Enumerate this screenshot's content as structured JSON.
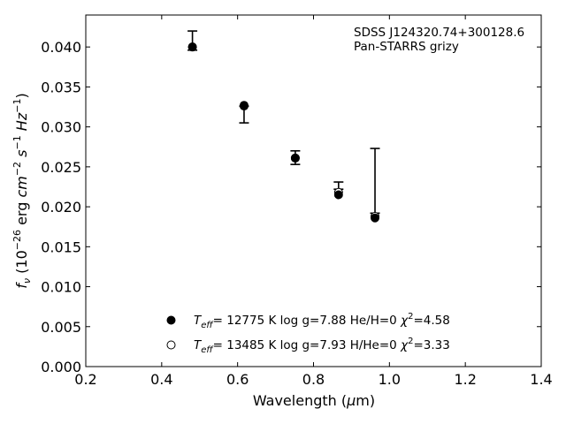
{
  "chart_data": {
    "type": "scatter",
    "title": "",
    "xlabel": "Wavelength (μm)",
    "ylabel": "f_ν (10^-26 erg cm^-2 s^-1 Hz^-1)",
    "xlim": [
      0.2,
      1.4
    ],
    "ylim": [
      0.0,
      0.044
    ],
    "xticks": [
      0.2,
      0.4,
      0.6,
      0.8,
      1.0,
      1.2,
      1.4
    ],
    "xtick_labels": [
      "0.2",
      "0.4",
      "0.6",
      "0.8",
      "1.0",
      "1.2",
      "1.4"
    ],
    "yticks": [
      0.0,
      0.005,
      0.01,
      0.015,
      0.02,
      0.025,
      0.03,
      0.035,
      0.04
    ],
    "ytick_labels": [
      "0.000",
      "0.005",
      "0.010",
      "0.015",
      "0.020",
      "0.025",
      "0.030",
      "0.035",
      "0.040"
    ],
    "grid": false,
    "annotations": [
      "SDSS J124320.74+300128.6",
      "Pan-STARRS grizy"
    ],
    "observed": {
      "x": [
        0.481,
        0.617,
        0.752,
        0.866,
        0.962
      ],
      "y": [
        0.0398,
        0.0326,
        0.0262,
        0.0231,
        0.0192
      ],
      "yerr_low": [
        0.0002,
        0.0021,
        0.0009,
        0.0009,
        0.0
      ],
      "yerr_high": [
        0.0022,
        0.0,
        0.0008,
        0.0,
        0.0081
      ]
    },
    "series": [
      {
        "name": "T_eff= 12775 K  log g=7.88  He/H=0  χ²=4.58",
        "marker": "filled-circle",
        "x": [
          0.481,
          0.617,
          0.752,
          0.866,
          0.962
        ],
        "y": [
          0.04,
          0.0327,
          0.0261,
          0.0215,
          0.0186
        ]
      },
      {
        "name": "T_eff= 13485 K  log g=7.93  H/He=0  χ²=3.33",
        "marker": "open-circle",
        "x": [
          0.481,
          0.617,
          0.752,
          0.866,
          0.962
        ],
        "y": [
          0.04,
          0.0326,
          0.0261,
          0.0218,
          0.0188
        ]
      }
    ],
    "legend_placement": "lower-center"
  }
}
